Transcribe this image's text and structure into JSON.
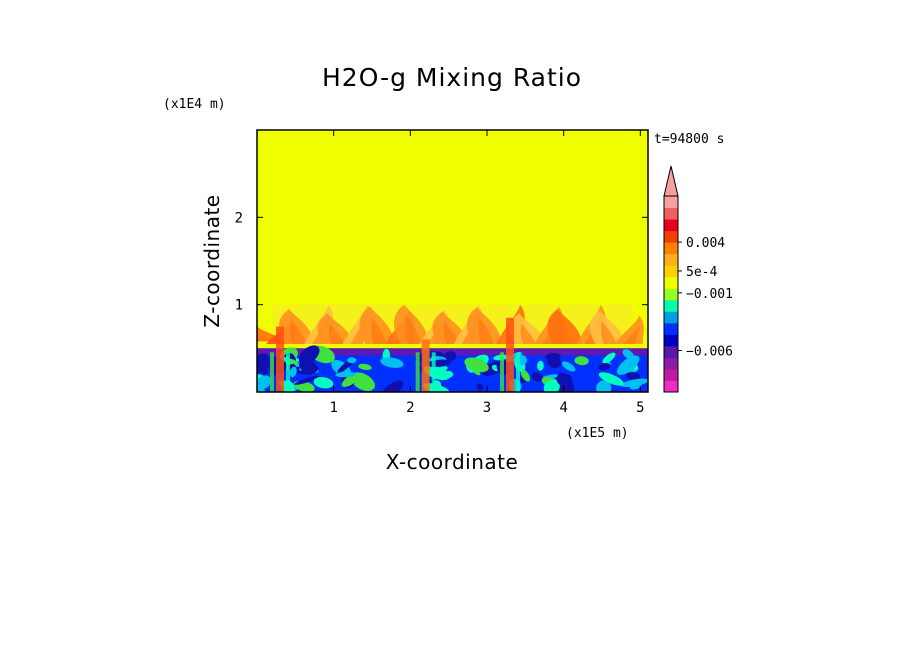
{
  "chart_data": {
    "type": "heatmap",
    "title": "H2O-g Mixing Ratio",
    "xlabel": "X-coordinate",
    "ylabel": "Z-coordinate",
    "x_scale_label": "(x1E5 m)",
    "y_scale_label": "(x1E4 m)",
    "time_label": "t=94800 s",
    "xlim": [
      0,
      5.1
    ],
    "ylim": [
      0,
      3.0
    ],
    "x_ticks": [
      "1",
      "2",
      "3",
      "4",
      "5"
    ],
    "y_ticks": [
      "1",
      "2"
    ],
    "x_tick_values": [
      1,
      2,
      3,
      4,
      5
    ],
    "y_tick_values": [
      1,
      2
    ],
    "background_value_color": "#f0ff00",
    "boundary_layer_top": 0.5,
    "upper_plume_top": 1.0,
    "colorbar": {
      "colors": [
        "#f02cc8",
        "#c01ca0",
        "#8c1ca8",
        "#5818a8",
        "#0000c0",
        "#0030ff",
        "#00a0e0",
        "#00ffa8",
        "#98ff20",
        "#f0ff00",
        "#ffd000",
        "#ffb020",
        "#ff8000",
        "#f04000",
        "#e80020",
        "#f06060",
        "#f8a0a0"
      ],
      "labels": [
        "0.004",
        "5e-4",
        "−0.001",
        "−0.006"
      ],
      "label_values": [
        0.004,
        0.0005,
        -0.001,
        -0.006
      ],
      "extend": "max"
    },
    "palette": {
      "deep_blue": "#1010b0",
      "blue": "#0030ff",
      "cyan": "#00c0f0",
      "aqua": "#00ffc0",
      "green": "#40e040",
      "yellow": "#f0ff00",
      "light_orange": "#ffc040",
      "orange": "#ff9020",
      "dark_orange": "#ff7010",
      "red_orange": "#ff5010",
      "purple": "#6018b0"
    },
    "plumes": [
      {
        "x": 0.1,
        "base": 0.58,
        "top": 0.78,
        "color": "dark_orange"
      },
      {
        "x": 0.3,
        "base": 0.55,
        "top": 0.82,
        "color": "red_orange"
      },
      {
        "x": 0.55,
        "base": 0.55,
        "top": 0.95,
        "color": "orange"
      },
      {
        "x": 0.8,
        "base": 0.55,
        "top": 1.0,
        "color": "light_orange"
      },
      {
        "x": 1.05,
        "base": 0.55,
        "top": 0.9,
        "color": "orange"
      },
      {
        "x": 1.3,
        "base": 0.55,
        "top": 1.0,
        "color": "light_orange"
      },
      {
        "x": 1.6,
        "base": 0.55,
        "top": 0.98,
        "color": "orange"
      },
      {
        "x": 1.85,
        "base": 0.55,
        "top": 0.93,
        "color": "dark_orange"
      },
      {
        "x": 2.05,
        "base": 0.55,
        "top": 1.0,
        "color": "orange"
      },
      {
        "x": 2.3,
        "base": 0.55,
        "top": 0.95,
        "color": "light_orange"
      },
      {
        "x": 2.55,
        "base": 0.55,
        "top": 0.92,
        "color": "orange"
      },
      {
        "x": 2.75,
        "base": 0.55,
        "top": 1.0,
        "color": "light_orange"
      },
      {
        "x": 3.0,
        "base": 0.55,
        "top": 0.97,
        "color": "orange"
      },
      {
        "x": 3.3,
        "base": 0.55,
        "top": 1.0,
        "color": "dark_orange"
      },
      {
        "x": 3.55,
        "base": 0.55,
        "top": 0.9,
        "color": "light_orange"
      },
      {
        "x": 3.8,
        "base": 0.55,
        "top": 0.98,
        "color": "orange"
      },
      {
        "x": 4.05,
        "base": 0.55,
        "top": 0.95,
        "color": "dark_orange"
      },
      {
        "x": 4.35,
        "base": 0.55,
        "top": 1.0,
        "color": "orange"
      },
      {
        "x": 4.6,
        "base": 0.55,
        "top": 0.93,
        "color": "light_orange"
      },
      {
        "x": 4.85,
        "base": 0.55,
        "top": 0.88,
        "color": "orange"
      }
    ],
    "columns": [
      {
        "x": 0.3,
        "top": 0.75,
        "color": "red_orange"
      },
      {
        "x": 3.3,
        "top": 0.85,
        "color": "red_orange"
      },
      {
        "x": 2.2,
        "top": 0.6,
        "color": "dark_orange"
      }
    ]
  }
}
